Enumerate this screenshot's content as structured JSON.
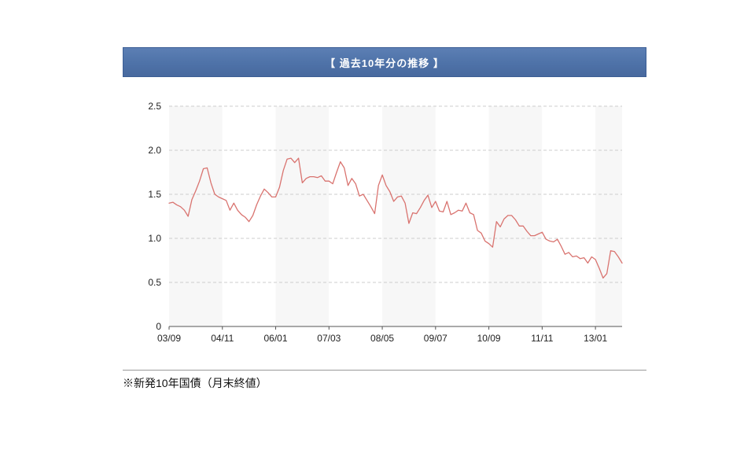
{
  "header": {
    "title": "【 過去10年分の推移 】",
    "bg_color": "#4e72a8",
    "border_color": "#3c5e95",
    "text_color": "#ffffff"
  },
  "footer": {
    "note": "※新発10年国債（月末終値）"
  },
  "chart_data": {
    "type": "line",
    "title": "【 過去10年分の推移 】",
    "xlabel": "",
    "ylabel": "",
    "ylim": [
      0,
      2.5
    ],
    "grid": "dashed-horizontal",
    "legend_position": "none",
    "x_tick_labels": [
      "03/09",
      "04/11",
      "06/01",
      "07/03",
      "08/05",
      "09/07",
      "10/09",
      "11/11",
      "13/01"
    ],
    "x_tick_positions": [
      0,
      14,
      28,
      42,
      56,
      70,
      84,
      98,
      112
    ],
    "y_ticks": [
      0,
      0.5,
      1.0,
      1.5,
      2.0,
      2.5
    ],
    "y_tick_labels": [
      "0",
      "0.5",
      "1.0",
      "1.5",
      "2.0",
      "2.5"
    ],
    "band_interval": 14,
    "band_colors": [
      "#f7f7f7",
      "#ffffff"
    ],
    "grid_color": "#cccccc",
    "axis_color": "#555555",
    "label_color": "#222222",
    "series": [
      {
        "name": "新発10年国債（月末終値）",
        "color": "#d9736f",
        "values": [
          1.4,
          1.41,
          1.38,
          1.36,
          1.32,
          1.25,
          1.44,
          1.54,
          1.65,
          1.79,
          1.8,
          1.63,
          1.5,
          1.47,
          1.45,
          1.43,
          1.32,
          1.4,
          1.32,
          1.27,
          1.24,
          1.19,
          1.26,
          1.38,
          1.48,
          1.56,
          1.52,
          1.47,
          1.47,
          1.58,
          1.77,
          1.9,
          1.91,
          1.86,
          1.91,
          1.63,
          1.68,
          1.7,
          1.7,
          1.69,
          1.71,
          1.65,
          1.65,
          1.62,
          1.75,
          1.87,
          1.8,
          1.6,
          1.68,
          1.62,
          1.48,
          1.5,
          1.43,
          1.36,
          1.28,
          1.6,
          1.72,
          1.6,
          1.53,
          1.42,
          1.47,
          1.48,
          1.4,
          1.17,
          1.29,
          1.28,
          1.35,
          1.43,
          1.49,
          1.35,
          1.42,
          1.31,
          1.3,
          1.42,
          1.27,
          1.29,
          1.32,
          1.31,
          1.4,
          1.29,
          1.27,
          1.09,
          1.06,
          0.97,
          0.94,
          0.9,
          1.19,
          1.13,
          1.22,
          1.26,
          1.26,
          1.21,
          1.14,
          1.14,
          1.08,
          1.03,
          1.03,
          1.05,
          1.07,
          0.99,
          0.97,
          0.96,
          0.99,
          0.91,
          0.82,
          0.84,
          0.79,
          0.8,
          0.77,
          0.78,
          0.72,
          0.79,
          0.76,
          0.66,
          0.55,
          0.6,
          0.86,
          0.85,
          0.79,
          0.72
        ]
      }
    ]
  }
}
